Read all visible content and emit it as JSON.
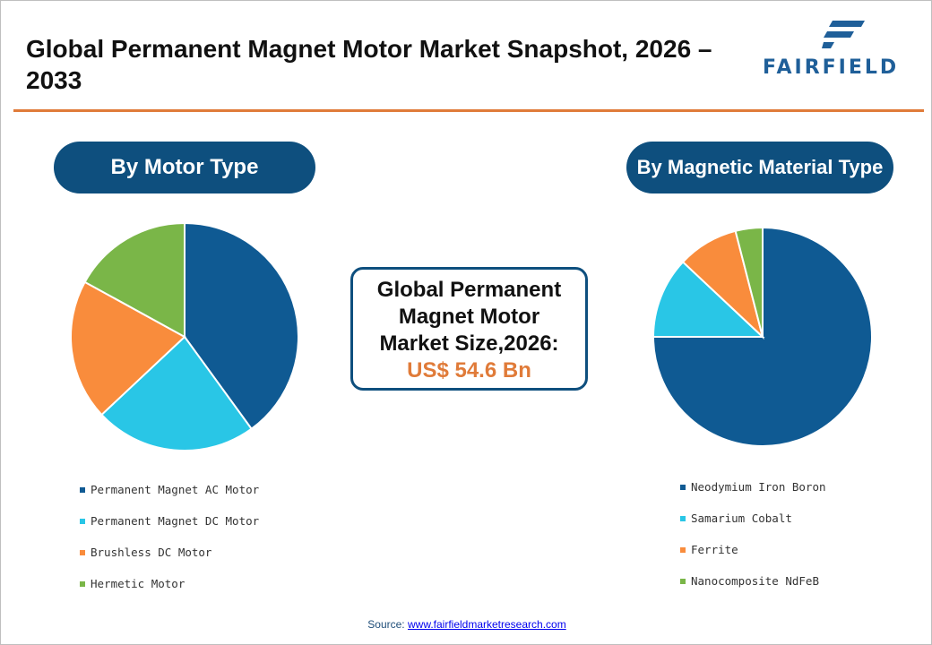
{
  "header": {
    "title": "Global Permanent Magnet Motor Market Snapshot, 2026 – 2033",
    "logo_text": "FAIRFIELD"
  },
  "colors": {
    "accent_orange": "#e07b39",
    "navy": "#0e4f7e",
    "series": [
      "#0f5a93",
      "#29c6e6",
      "#f98c3c",
      "#7ab648"
    ]
  },
  "center_box": {
    "line1": "Global Permanent",
    "line2": "Magnet Motor",
    "line3": "Market Size,2026:",
    "value": "US$ 54.6 Bn"
  },
  "source": {
    "label": "Source:",
    "link": "www.fairfieldmarketresearch.com"
  },
  "chart_data": [
    {
      "type": "pie",
      "title": "By Motor Type",
      "categories": [
        "Permanent Magnet AC Motor",
        "Permanent Magnet DC Motor",
        "Brushless DC Motor",
        "Hermetic Motor"
      ],
      "values": [
        40,
        23,
        20,
        17
      ],
      "colors": [
        "#0f5a93",
        "#29c6e6",
        "#f98c3c",
        "#7ab648"
      ]
    },
    {
      "type": "pie",
      "title": "By Magnetic Material Type",
      "categories": [
        "Neodymium Iron Boron",
        "Samarium Cobalt",
        "Ferrite",
        "Nanocomposite NdFeB"
      ],
      "values": [
        75,
        12,
        9,
        4
      ],
      "colors": [
        "#0f5a93",
        "#29c6e6",
        "#f98c3c",
        "#7ab648"
      ]
    }
  ]
}
